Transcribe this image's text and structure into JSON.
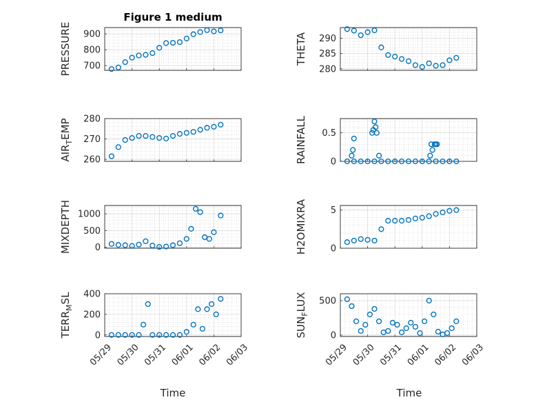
{
  "figure": {
    "title": "Figure 1 medium",
    "marker_color": "#0072BD",
    "xlabel": "Time"
  },
  "chart_data": [
    {
      "type": "scatter",
      "ylabel": "PRESSURE",
      "xlim": [
        "05/29",
        "06/03"
      ],
      "ylim": [
        670,
        940
      ],
      "yticks": [
        700,
        800,
        900
      ],
      "grid": "on",
      "x": [
        "05/29 06:00",
        "05/29 12:00",
        "05/29 18:00",
        "05/30 00:00",
        "05/30 06:00",
        "05/30 12:00",
        "05/30 18:00",
        "05/31 00:00",
        "05/31 06:00",
        "05/31 12:00",
        "05/31 18:00",
        "06/01 00:00",
        "06/01 06:00",
        "06/01 12:00",
        "06/01 18:00",
        "06/02 00:00",
        "06/02 06:00"
      ],
      "y": [
        678,
        688,
        722,
        750,
        764,
        768,
        779,
        812,
        842,
        844,
        848,
        871,
        898,
        912,
        924,
        916,
        922
      ]
    },
    {
      "type": "scatter",
      "ylabel": "THETA",
      "xlim": [
        "05/29",
        "06/03"
      ],
      "ylim": [
        279.5,
        293.5
      ],
      "yticks": [
        280,
        285,
        290
      ],
      "grid": "on",
      "x": [
        "05/29 06:00",
        "05/29 12:00",
        "05/29 18:00",
        "05/30 00:00",
        "05/30 06:00",
        "05/30 12:00",
        "05/30 18:00",
        "05/31 00:00",
        "05/31 06:00",
        "05/31 12:00",
        "05/31 18:00",
        "06/01 00:00",
        "06/01 06:00",
        "06/01 12:00",
        "06/01 18:00",
        "06/02 00:00",
        "06/02 06:00"
      ],
      "y": [
        293,
        292.5,
        291,
        292,
        292.6,
        287,
        284.5,
        284,
        283.2,
        282.5,
        281.2,
        280.6,
        281.8,
        281,
        281.2,
        282.8,
        283.6
      ]
    },
    {
      "type": "scatter",
      "ylabel": "AIR_TEMP",
      "xlim": [
        "05/29",
        "06/03"
      ],
      "ylim": [
        259,
        280
      ],
      "yticks": [
        260,
        270,
        280
      ],
      "grid": "on",
      "x": [
        "05/29 06:00",
        "05/29 12:00",
        "05/29 18:00",
        "05/30 00:00",
        "05/30 06:00",
        "05/30 12:00",
        "05/30 18:00",
        "05/31 00:00",
        "05/31 06:00",
        "05/31 12:00",
        "05/31 18:00",
        "06/01 00:00",
        "06/01 06:00",
        "06/01 12:00",
        "06/01 18:00",
        "06/02 00:00",
        "06/02 06:00"
      ],
      "y": [
        261.5,
        266,
        269.5,
        270.5,
        271.5,
        271.5,
        271,
        270.5,
        270.2,
        271.5,
        272.5,
        273,
        273.5,
        274.5,
        275.5,
        276,
        277
      ]
    },
    {
      "type": "scatter",
      "ylabel": "RAINFALL",
      "xlim": [
        "05/29",
        "06/03"
      ],
      "ylim": [
        0,
        0.75
      ],
      "yticks": [
        0,
        0.5
      ],
      "grid": "on",
      "x": [
        "05/29 06:00",
        "05/29 12:00",
        "05/29 18:00",
        "05/30 00:00",
        "05/30 06:00",
        "05/30 12:00",
        "05/30 18:00",
        "05/31 00:00",
        "05/31 06:00",
        "05/31 12:00",
        "05/31 18:00",
        "06/01 00:00",
        "06/01 06:00",
        "06/01 12:00",
        "06/01 18:00",
        "06/02 00:00",
        "06/02 06:00",
        "05/29 10:00",
        "05/29 11:00",
        "05/29 12:00",
        "05/30 04:00",
        "05/30 05:00",
        "05/30 06:00",
        "05/30 07:00",
        "05/30 08:00",
        "05/30 10:00",
        "06/01 07:00",
        "06/01 08:00",
        "06/01 09:00",
        "06/01 11:00",
        "06/01 12:00",
        "06/01 13:00"
      ],
      "y": [
        0,
        0,
        0,
        0,
        0,
        0,
        0,
        0,
        0,
        0,
        0,
        0,
        0,
        0,
        0,
        0,
        0,
        0.1,
        0.2,
        0.4,
        0.5,
        0.55,
        0.7,
        0.6,
        0.5,
        0.1,
        0.1,
        0.3,
        0.2,
        0.3,
        0.3,
        0.3
      ]
    },
    {
      "type": "scatter",
      "ylabel": "MIXDEPTH",
      "xlim": [
        "05/29",
        "06/03"
      ],
      "ylim": [
        -30,
        1250
      ],
      "yticks": [
        0,
        500,
        1000
      ],
      "grid": "on",
      "x": [
        "05/29 06:00",
        "05/29 12:00",
        "05/29 18:00",
        "05/30 00:00",
        "05/30 06:00",
        "05/30 12:00",
        "05/30 18:00",
        "05/31 00:00",
        "05/31 06:00",
        "05/31 12:00",
        "05/31 18:00",
        "06/01 00:00",
        "06/01 04:00",
        "06/01 08:00",
        "06/01 12:00",
        "06/01 16:00",
        "06/01 20:00",
        "06/02 00:00",
        "06/02 06:00"
      ],
      "y": [
        100,
        70,
        60,
        40,
        80,
        180,
        50,
        10,
        20,
        60,
        120,
        250,
        550,
        1150,
        1050,
        300,
        250,
        450,
        950
      ]
    },
    {
      "type": "scatter",
      "ylabel": "H2OMIXRA",
      "xlim": [
        "05/29",
        "06/03"
      ],
      "ylim": [
        0,
        5.6
      ],
      "yticks": [
        0,
        5
      ],
      "grid": "on",
      "x": [
        "05/29 06:00",
        "05/29 12:00",
        "05/29 18:00",
        "05/30 00:00",
        "05/30 06:00",
        "05/30 12:00",
        "05/30 18:00",
        "05/31 00:00",
        "05/31 06:00",
        "05/31 12:00",
        "05/31 18:00",
        "06/01 00:00",
        "06/01 06:00",
        "06/01 12:00",
        "06/01 18:00",
        "06/02 00:00",
        "06/02 06:00"
      ],
      "y": [
        0.8,
        1.0,
        1.2,
        1.1,
        1.0,
        2.5,
        3.6,
        3.6,
        3.6,
        3.7,
        3.9,
        4.0,
        4.2,
        4.5,
        4.7,
        4.9,
        5.0
      ]
    },
    {
      "type": "scatter",
      "ylabel": "TERR_MSL",
      "xlim": [
        "05/29",
        "06/03"
      ],
      "ylim": [
        -15,
        400
      ],
      "yticks": [
        0,
        200,
        400
      ],
      "grid": "on",
      "x": [
        "05/29 06:00",
        "05/29 12:00",
        "05/29 18:00",
        "05/30 00:00",
        "05/30 06:00",
        "05/30 10:00",
        "05/30 14:00",
        "05/30 18:00",
        "05/31 00:00",
        "05/31 06:00",
        "05/31 12:00",
        "05/31 18:00",
        "06/01 00:00",
        "06/01 06:00",
        "06/01 10:00",
        "06/01 14:00",
        "06/01 18:00",
        "06/01 22:00",
        "06/02 02:00",
        "06/02 06:00"
      ],
      "y": [
        0,
        0,
        0,
        0,
        0,
        100,
        300,
        0,
        0,
        0,
        0,
        0,
        30,
        100,
        250,
        60,
        250,
        300,
        200,
        350
      ]
    },
    {
      "type": "scatter",
      "ylabel": "SUN_FLUX",
      "xlim": [
        "05/29",
        "06/03"
      ],
      "ylim": [
        -20,
        600
      ],
      "yticks": [
        0,
        500
      ],
      "grid": "on",
      "x": [
        "05/29 06:00",
        "05/29 10:00",
        "05/29 14:00",
        "05/29 18:00",
        "05/29 22:00",
        "05/30 02:00",
        "05/30 06:00",
        "05/30 10:00",
        "05/30 14:00",
        "05/30 18:00",
        "05/30 22:00",
        "05/31 02:00",
        "05/31 06:00",
        "05/31 10:00",
        "05/31 14:00",
        "05/31 18:00",
        "05/31 22:00",
        "06/01 02:00",
        "06/01 06:00",
        "06/01 10:00",
        "06/01 14:00",
        "06/01 18:00",
        "06/01 22:00",
        "06/02 02:00",
        "06/02 06:00"
      ],
      "y": [
        520,
        420,
        200,
        60,
        150,
        300,
        380,
        200,
        40,
        60,
        180,
        150,
        40,
        100,
        180,
        120,
        30,
        200,
        500,
        300,
        50,
        10,
        30,
        100,
        200
      ]
    }
  ]
}
